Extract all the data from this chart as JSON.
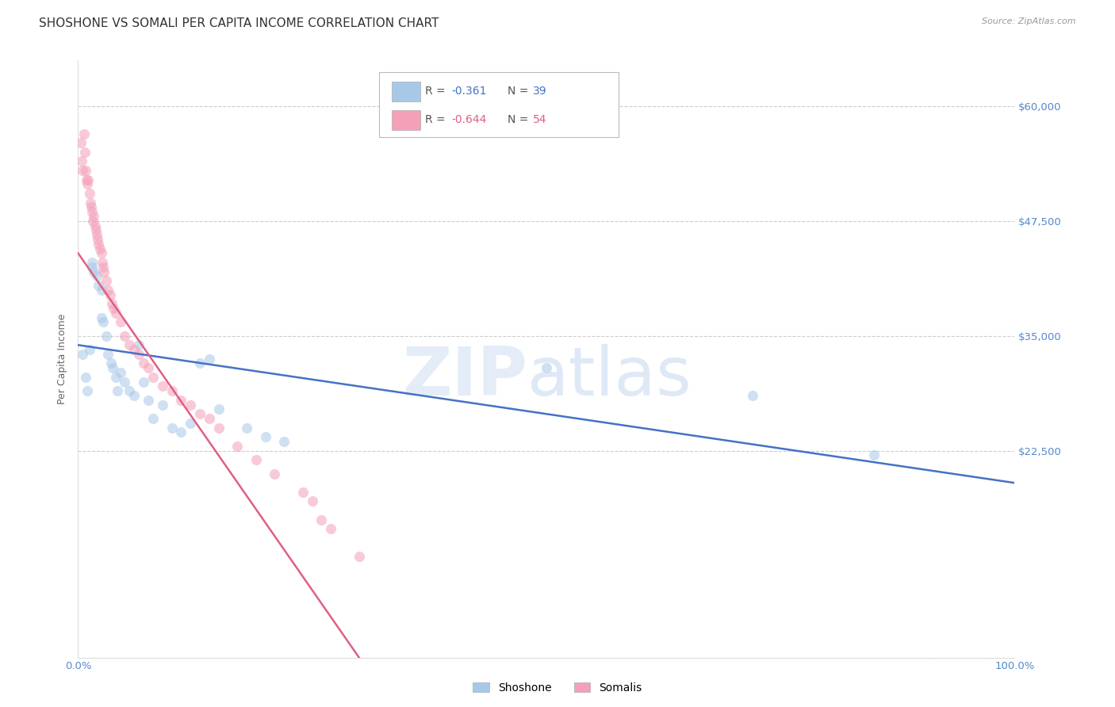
{
  "title": "SHOSHONE VS SOMALI PER CAPITA INCOME CORRELATION CHART",
  "source": "Source: ZipAtlas.com",
  "ylabel": "Per Capita Income",
  "xlim": [
    0,
    1.0
  ],
  "ylim": [
    0,
    65000
  ],
  "yticks": [
    0,
    22500,
    35000,
    47500,
    60000
  ],
  "yticklabels": [
    "",
    "$22,500",
    "$35,000",
    "$47,500",
    "$60,000"
  ],
  "legend_label_shoshone": "Shoshone",
  "legend_label_somali": "Somalis",
  "shoshone_color": "#a8c8e8",
  "somali_color": "#f4a0b8",
  "shoshone_line_color": "#4472c4",
  "somali_line_color": "#e06080",
  "r_color_shoshone": "#4472c4",
  "r_color_somali": "#e06080",
  "shoshone_r": "-0.361",
  "shoshone_n": "39",
  "somali_r": "-0.644",
  "somali_n": "54",
  "shoshone_x": [
    0.005,
    0.008,
    0.01,
    0.012,
    0.015,
    0.015,
    0.017,
    0.02,
    0.022,
    0.025,
    0.025,
    0.027,
    0.03,
    0.032,
    0.035,
    0.037,
    0.04,
    0.042,
    0.045,
    0.05,
    0.055,
    0.06,
    0.065,
    0.07,
    0.075,
    0.08,
    0.09,
    0.1,
    0.11,
    0.12,
    0.13,
    0.14,
    0.15,
    0.18,
    0.2,
    0.22,
    0.5,
    0.72,
    0.85
  ],
  "shoshone_y": [
    33000,
    30500,
    29000,
    33500,
    43000,
    42500,
    42000,
    41500,
    40500,
    40000,
    37000,
    36500,
    35000,
    33000,
    32000,
    31500,
    30500,
    29000,
    31000,
    30000,
    29000,
    28500,
    34000,
    30000,
    28000,
    26000,
    27500,
    25000,
    24500,
    25500,
    32000,
    32500,
    27000,
    25000,
    24000,
    23500,
    31500,
    28500,
    22000
  ],
  "somali_x": [
    0.003,
    0.004,
    0.005,
    0.006,
    0.007,
    0.008,
    0.009,
    0.01,
    0.011,
    0.012,
    0.013,
    0.014,
    0.015,
    0.016,
    0.017,
    0.018,
    0.019,
    0.02,
    0.021,
    0.022,
    0.023,
    0.025,
    0.026,
    0.027,
    0.028,
    0.03,
    0.032,
    0.034,
    0.036,
    0.038,
    0.04,
    0.045,
    0.05,
    0.055,
    0.06,
    0.065,
    0.07,
    0.075,
    0.08,
    0.09,
    0.1,
    0.11,
    0.12,
    0.13,
    0.14,
    0.15,
    0.17,
    0.19,
    0.21,
    0.24,
    0.25,
    0.26,
    0.27,
    0.3
  ],
  "somali_y": [
    56000,
    54000,
    53000,
    57000,
    55000,
    53000,
    52000,
    51500,
    52000,
    50500,
    49500,
    49000,
    48500,
    47500,
    48000,
    47000,
    46500,
    46000,
    45500,
    45000,
    44500,
    44000,
    43000,
    42500,
    42000,
    41000,
    40000,
    39500,
    38500,
    38000,
    37500,
    36500,
    35000,
    34000,
    33500,
    33000,
    32000,
    31500,
    30500,
    29500,
    29000,
    28000,
    27500,
    26500,
    26000,
    25000,
    23000,
    21500,
    20000,
    18000,
    17000,
    15000,
    14000,
    11000
  ],
  "background_color": "#ffffff",
  "grid_color": "#cccccc",
  "title_fontsize": 11,
  "label_fontsize": 9,
  "tick_fontsize": 9.5,
  "marker_size": 90,
  "marker_alpha": 0.55,
  "line_width": 1.8
}
